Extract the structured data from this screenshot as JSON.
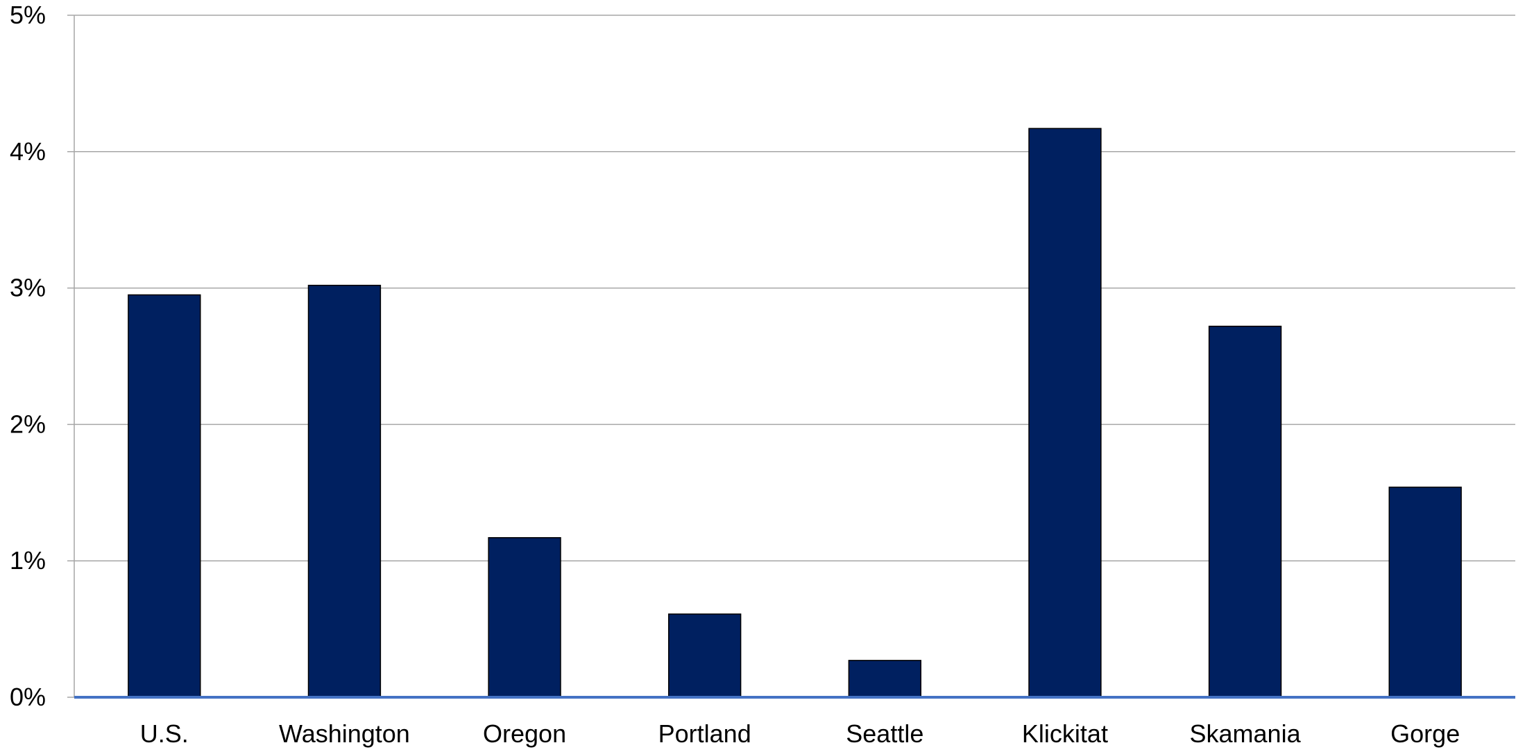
{
  "chart_data": {
    "type": "bar",
    "title": "",
    "xlabel": "",
    "ylabel": "",
    "categories": [
      "U.S.",
      "Washington",
      "Oregon",
      "Portland",
      "Seattle",
      "Klickitat",
      "Skamania",
      "Gorge"
    ],
    "values": [
      2.95,
      3.02,
      1.17,
      0.61,
      0.27,
      4.17,
      2.72,
      1.54
    ],
    "ylim": [
      0,
      5
    ],
    "yticks": [
      0,
      1,
      2,
      3,
      4,
      5
    ],
    "ytick_labels": [
      "0%",
      "1%",
      "2%",
      "3%",
      "4%",
      "5%"
    ],
    "grid": true,
    "legend": "none",
    "colors": {
      "bar_fill": "#002060",
      "bar_stroke": "#000000",
      "gridline": "#a6a6a6",
      "baseline": "#4472c4",
      "axis": "#a6a6a6"
    }
  }
}
